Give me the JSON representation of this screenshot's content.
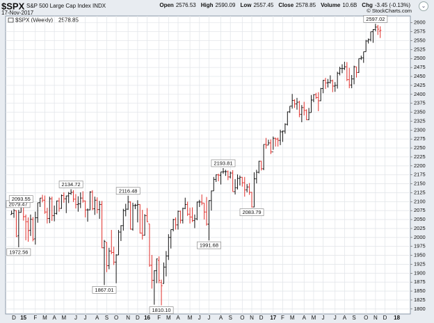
{
  "header": {
    "symbol": "$SPX",
    "name": "S&P 500 Large Cap Index",
    "exchange": "INDX",
    "date": "17-Nov-2017",
    "credit": "© StockCharts.com",
    "quote": [
      {
        "label": "Open",
        "value": "2576.53"
      },
      {
        "label": "High",
        "value": "2590.09"
      },
      {
        "label": "Low",
        "value": "2557.45"
      },
      {
        "label": "Close",
        "value": "2578.85"
      },
      {
        "label": "Volume",
        "value": "10.6B"
      },
      {
        "label": "Chg",
        "value": "-3.45 (-0.13%)"
      }
    ]
  },
  "chart_data": {
    "type": "ohlc",
    "name": "$SPX (Weekly)",
    "last_value": "2578.85",
    "up_color": "#111111",
    "down_color": "#e0302c",
    "grid": true,
    "ylim": [
      1788,
      2617
    ],
    "yticks": [
      1800,
      1825,
      1850,
      1875,
      1900,
      1925,
      1950,
      1975,
      2000,
      2025,
      2050,
      2075,
      2100,
      2125,
      2150,
      2175,
      2200,
      2225,
      2250,
      2275,
      2300,
      2325,
      2350,
      2375,
      2400,
      2425,
      2450,
      2475,
      2500,
      2525,
      2550,
      2575,
      2600
    ],
    "categories": [
      null,
      "D",
      null,
      null,
      null,
      "15",
      null,
      null,
      null,
      null,
      "F",
      null,
      null,
      null,
      "M",
      null,
      null,
      null,
      "A",
      null,
      null,
      null,
      "M",
      null,
      null,
      null,
      null,
      "J",
      null,
      null,
      null,
      "J",
      null,
      null,
      null,
      null,
      "A",
      null,
      null,
      null,
      "S",
      null,
      null,
      null,
      "O",
      null,
      null,
      null,
      null,
      "N",
      null,
      null,
      null,
      "D",
      null,
      null,
      null,
      "16",
      null,
      null,
      null,
      null,
      "F",
      null,
      null,
      null,
      "M",
      null,
      null,
      null,
      "A",
      null,
      null,
      null,
      null,
      "M",
      null,
      null,
      null,
      "J",
      null,
      null,
      null,
      "J",
      null,
      null,
      null,
      null,
      "A",
      null,
      null,
      null,
      "S",
      null,
      null,
      null,
      null,
      "O",
      null,
      null,
      null,
      "N",
      null,
      null,
      null,
      "D",
      null,
      null,
      null,
      null,
      "17",
      null,
      null,
      null,
      "F",
      null,
      null,
      null,
      "M",
      null,
      null,
      null,
      null,
      "A",
      null,
      null,
      null,
      "M",
      null,
      null,
      null,
      "J",
      null,
      null,
      null,
      null,
      "J",
      null,
      null,
      null,
      "A",
      null,
      null,
      null,
      "S",
      null,
      null,
      null,
      null,
      "O",
      null,
      null,
      null,
      "N",
      null,
      null,
      null,
      "D",
      null,
      null,
      null,
      null,
      "18",
      null
    ],
    "values": [
      [
        2064,
        2075,
        2064,
        2067
      ],
      [
        2067,
        2079.47,
        2055,
        2075
      ],
      [
        2075,
        2076,
        2002,
        2002
      ],
      [
        2005,
        2077,
        1972.56,
        2070
      ],
      [
        2070,
        2093.55,
        2069,
        2088
      ],
      [
        2088,
        2089,
        2047,
        2058
      ],
      [
        2058,
        2064,
        1992,
        2044
      ],
      [
        2044,
        2056,
        1988,
        2019
      ],
      [
        2020,
        2064,
        2004,
        2051
      ],
      [
        2050,
        2057,
        1989,
        1995
      ],
      [
        1996,
        2072,
        1980,
        2055
      ],
      [
        2055,
        2097,
        2041,
        2097
      ],
      [
        2097,
        2110,
        2085,
        2110
      ],
      [
        2110,
        2119,
        2098,
        2104
      ],
      [
        2104,
        2117,
        2066,
        2071
      ],
      [
        2071,
        2083,
        2039,
        2053
      ],
      [
        2053,
        2114,
        2040,
        2108
      ],
      [
        2108,
        2114,
        2046,
        2061
      ],
      [
        2061,
        2089,
        2045,
        2067
      ],
      [
        2067,
        2103,
        2064,
        2102
      ],
      [
        2102,
        2111,
        2072,
        2081
      ],
      [
        2081,
        2120,
        2080,
        2117
      ],
      [
        2117,
        2126,
        2097,
        2108
      ],
      [
        2108,
        2117,
        2068,
        2116
      ],
      [
        2116,
        2127,
        2096,
        2123
      ],
      [
        2123,
        2134.72,
        2119,
        2126
      ],
      [
        2126,
        2132,
        2099,
        2107
      ],
      [
        2107,
        2121,
        2081,
        2092
      ],
      [
        2092,
        2115,
        2072,
        2094
      ],
      [
        2094,
        2126,
        2082,
        2110
      ],
      [
        2110,
        2129,
        2097,
        2102
      ],
      [
        2102,
        2103,
        2056,
        2077
      ],
      [
        2077,
        2081,
        2044,
        2077
      ],
      [
        2077,
        2129,
        2076,
        2127
      ],
      [
        2127,
        2132,
        2076,
        2080
      ],
      [
        2080,
        2114,
        2063,
        2104
      ],
      [
        2104,
        2112,
        2067,
        2078
      ],
      [
        2078,
        2102,
        2052,
        2092
      ],
      [
        2092,
        2102,
        1970,
        1971
      ],
      [
        1971,
        1993,
        1867.01,
        1989
      ],
      [
        1986,
        1987,
        1903,
        1921
      ],
      [
        1921,
        1971,
        1911,
        1962
      ],
      [
        1962,
        2021,
        1953,
        1958
      ],
      [
        1958,
        1974,
        1923,
        1931
      ],
      [
        1931,
        1953,
        1872,
        1951
      ],
      [
        1951,
        2021,
        1951,
        2015
      ],
      [
        2015,
        2034,
        1990,
        2033
      ],
      [
        2033,
        2080,
        2019,
        2075
      ],
      [
        2075,
        2094,
        2059,
        2079
      ],
      [
        2079,
        2116.48,
        2077,
        2099
      ],
      [
        2099,
        2101,
        2022,
        2023
      ],
      [
        2023,
        2097,
        2019,
        2089
      ],
      [
        2089,
        2094,
        2079,
        2090
      ],
      [
        2090,
        2104,
        2042,
        2092
      ],
      [
        2092,
        2093,
        2011,
        2012
      ],
      [
        2012,
        2077,
        1994,
        2006
      ],
      [
        2006,
        2065,
        2005,
        2061
      ],
      [
        2061,
        2082,
        2043,
        2044
      ],
      [
        2038,
        2038,
        1918,
        1922
      ],
      [
        1922,
        1951,
        1857,
        1880
      ],
      [
        1880,
        1908,
        1812,
        1907
      ],
      [
        1907,
        1941,
        1872,
        1940
      ],
      [
        1936,
        1947,
        1872,
        1880
      ],
      [
        1874,
        1882,
        1810.1,
        1865
      ],
      [
        1871,
        1930,
        1871,
        1917
      ],
      [
        1917,
        1962,
        1891,
        1948
      ],
      [
        1948,
        2009,
        1937,
        2000
      ],
      [
        2000,
        2022,
        1969,
        2022
      ],
      [
        2022,
        2052,
        2017,
        2050
      ],
      [
        2050,
        2056,
        2022,
        2035
      ],
      [
        2035,
        2075,
        2022,
        2073
      ],
      [
        2073,
        2075,
        2039,
        2048
      ],
      [
        2048,
        2083,
        2039,
        2081
      ],
      [
        2081,
        2111,
        2079,
        2092
      ],
      [
        2092,
        2100,
        2060,
        2065
      ],
      [
        2065,
        2083,
        2039,
        2057
      ],
      [
        2057,
        2084,
        2043,
        2047
      ],
      [
        2047,
        2064,
        2026,
        2052
      ],
      [
        2052,
        2100,
        2048,
        2099
      ],
      [
        2099,
        2105,
        2085,
        2099
      ],
      [
        2099,
        2120,
        2090,
        2096
      ],
      [
        2096,
        2096,
        2050,
        2071
      ],
      [
        2071,
        2113,
        2033,
        2037
      ],
      [
        2037,
        2104,
        1991.68,
        2103
      ],
      [
        2103,
        2131,
        2075,
        2130
      ],
      [
        2130,
        2169,
        2130,
        2162
      ],
      [
        2162,
        2176,
        2155,
        2175
      ],
      [
        2175,
        2178,
        2157,
        2174
      ],
      [
        2174,
        2183,
        2148,
        2183
      ],
      [
        2183,
        2193.81,
        2178,
        2184
      ],
      [
        2184,
        2189,
        2172,
        2184
      ],
      [
        2184,
        2187,
        2160,
        2169
      ],
      [
        2169,
        2184,
        2165,
        2180
      ],
      [
        2180,
        2188,
        2128,
        2128
      ],
      [
        2128,
        2163,
        2120,
        2139
      ],
      [
        2139,
        2176,
        2134,
        2165
      ],
      [
        2165,
        2173,
        2145,
        2168
      ],
      [
        2168,
        2169,
        2142,
        2153
      ],
      [
        2153,
        2169,
        2114,
        2133
      ],
      [
        2133,
        2149,
        2126,
        2141
      ],
      [
        2141,
        2152,
        2119,
        2126
      ],
      [
        2126,
        2127,
        2083.79,
        2085
      ],
      [
        2085,
        2182,
        2084,
        2164
      ],
      [
        2164,
        2189,
        2151,
        2182
      ],
      [
        2182,
        2214,
        2179,
        2213
      ],
      [
        2213,
        2214,
        2187,
        2192
      ],
      [
        2192,
        2260,
        2188,
        2260
      ],
      [
        2260,
        2278,
        2248,
        2258
      ],
      [
        2258,
        2273,
        2258,
        2264
      ],
      [
        2264,
        2274,
        2233,
        2239
      ],
      [
        2239,
        2282,
        2245,
        2277
      ],
      [
        2277,
        2279,
        2254,
        2275
      ],
      [
        2275,
        2279,
        2254,
        2271
      ],
      [
        2271,
        2301,
        2258,
        2295
      ],
      [
        2295,
        2299,
        2267,
        2297
      ],
      [
        2297,
        2319,
        2290,
        2316
      ],
      [
        2316,
        2352,
        2313,
        2351
      ],
      [
        2351,
        2367,
        2348,
        2367
      ],
      [
        2367,
        2401,
        2360,
        2383
      ],
      [
        2383,
        2386,
        2362,
        2373
      ],
      [
        2373,
        2390,
        2357,
        2378
      ],
      [
        2378,
        2382,
        2336,
        2344
      ],
      [
        2344,
        2370,
        2322,
        2363
      ],
      [
        2363,
        2379,
        2341,
        2355
      ],
      [
        2355,
        2358,
        2328,
        2329
      ],
      [
        2329,
        2362,
        2328,
        2349
      ],
      [
        2349,
        2398,
        2349,
        2384
      ],
      [
        2384,
        2400,
        2378,
        2399
      ],
      [
        2399,
        2404,
        2387,
        2391
      ],
      [
        2391,
        2406,
        2353,
        2382
      ],
      [
        2382,
        2418,
        2381,
        2416
      ],
      [
        2416,
        2440,
        2403,
        2439
      ],
      [
        2439,
        2446,
        2415,
        2432
      ],
      [
        2432,
        2443,
        2419,
        2433
      ],
      [
        2433,
        2453,
        2430,
        2438
      ],
      [
        2438,
        2441,
        2406,
        2423
      ],
      [
        2423,
        2434,
        2407,
        2425
      ],
      [
        2425,
        2463,
        2416,
        2459
      ],
      [
        2459,
        2477,
        2453,
        2472
      ],
      [
        2472,
        2484,
        2459,
        2472
      ],
      [
        2472,
        2491,
        2468,
        2477
      ],
      [
        2477,
        2490,
        2437,
        2441
      ],
      [
        2441,
        2474,
        2417,
        2426
      ],
      [
        2426,
        2454,
        2417,
        2443
      ],
      [
        2443,
        2480,
        2428,
        2477
      ],
      [
        2477,
        2477,
        2447,
        2461
      ],
      [
        2461,
        2500,
        2460,
        2500
      ],
      [
        2500,
        2508,
        2496,
        2502
      ],
      [
        2502,
        2519,
        2488,
        2519
      ],
      [
        2519,
        2552,
        2519,
        2549
      ],
      [
        2549,
        2556,
        2542,
        2553
      ],
      [
        2553,
        2575,
        2548,
        2575
      ],
      [
        2575,
        2582,
        2544,
        2581
      ],
      [
        2581,
        2597.02,
        2576,
        2588
      ],
      [
        2588,
        2594,
        2566,
        2582
      ],
      [
        2576.53,
        2590.09,
        2557.45,
        2578.85
      ],
      null,
      null,
      null,
      null,
      null,
      null,
      null,
      null
    ],
    "value_labels": [
      null,
      "2079.47",
      null,
      "1972.56",
      "2093.55",
      null,
      null,
      null,
      null,
      null,
      null,
      null,
      null,
      null,
      null,
      null,
      null,
      null,
      null,
      null,
      null,
      null,
      null,
      null,
      null,
      "2134.72",
      null,
      null,
      null,
      null,
      null,
      null,
      null,
      null,
      null,
      null,
      null,
      null,
      null,
      "1867.01",
      null,
      null,
      null,
      null,
      null,
      null,
      null,
      null,
      null,
      "2116.48",
      null,
      null,
      null,
      null,
      null,
      null,
      null,
      null,
      null,
      null,
      null,
      null,
      null,
      "1810.10",
      null,
      null,
      null,
      null,
      null,
      null,
      null,
      null,
      null,
      null,
      null,
      null,
      null,
      null,
      null,
      null,
      null,
      null,
      null,
      "1991.68",
      null,
      null,
      null,
      null,
      null,
      "2193.81",
      null,
      null,
      null,
      null,
      null,
      null,
      null,
      null,
      null,
      null,
      null,
      "2083.79",
      null,
      null,
      null,
      null,
      null,
      null,
      null,
      null,
      null,
      null,
      null,
      null,
      null,
      null,
      null,
      null,
      null,
      null,
      null,
      null,
      null,
      null,
      null,
      null,
      null,
      null,
      null,
      null,
      null,
      null,
      null,
      null,
      null,
      null,
      null,
      null,
      null,
      null,
      null,
      null,
      null,
      null,
      null,
      null,
      null,
      null,
      null,
      null,
      null,
      null,
      null,
      "2597.02",
      null,
      null,
      null,
      null,
      null,
      null,
      null,
      null,
      null,
      null
    ]
  }
}
